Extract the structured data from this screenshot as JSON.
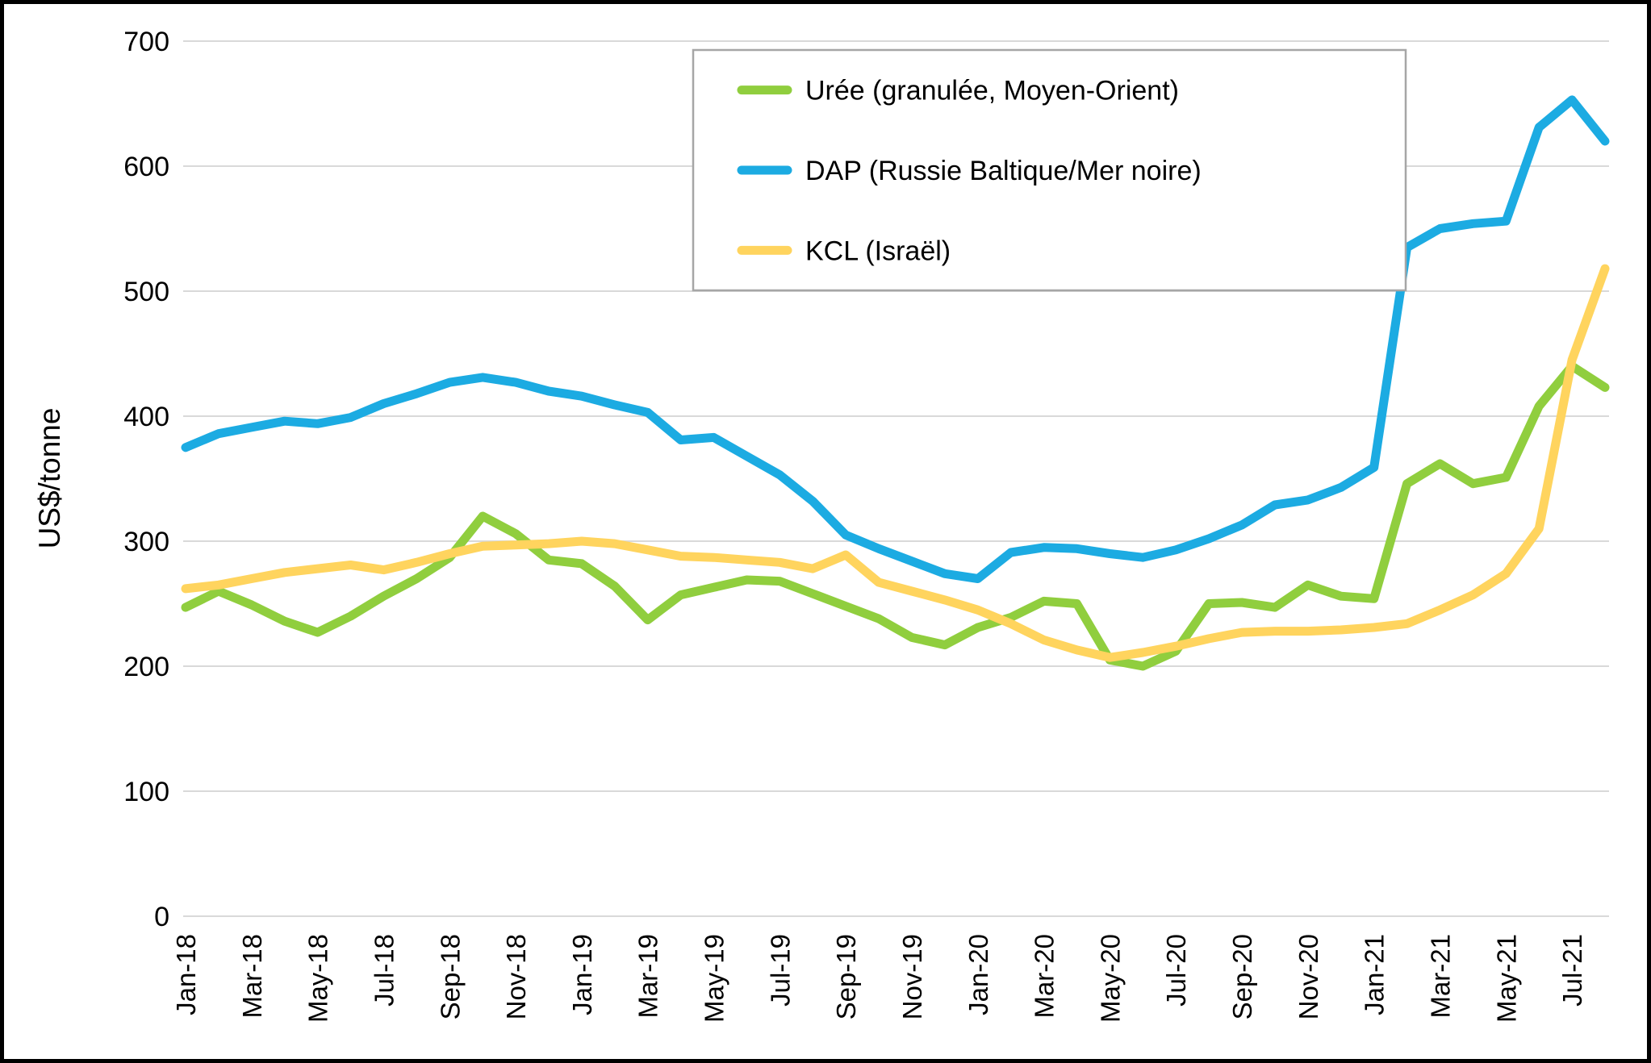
{
  "chart_data": {
    "type": "line",
    "title": "",
    "ylabel": "US$/tonne",
    "xlabel": "",
    "ylim": [
      0,
      700
    ],
    "ytick_step": 100,
    "ytick_labels": [
      "0",
      "100",
      "200",
      "300",
      "400",
      "500",
      "600",
      "700"
    ],
    "grid": "horizontal-only",
    "legend_position": "top-center-inside-box",
    "x_ticks_shown_every": 2,
    "categories": [
      "Jan-18",
      "Feb-18",
      "Mar-18",
      "Apr-18",
      "May-18",
      "Jun-18",
      "Jul-18",
      "Aug-18",
      "Sep-18",
      "Oct-18",
      "Nov-18",
      "Dec-18",
      "Jan-19",
      "Feb-19",
      "Mar-19",
      "Apr-19",
      "May-19",
      "Jun-19",
      "Jul-19",
      "Aug-19",
      "Sep-19",
      "Oct-19",
      "Nov-19",
      "Dec-19",
      "Jan-20",
      "Feb-20",
      "Mar-20",
      "Apr-20",
      "May-20",
      "Jun-20",
      "Jul-20",
      "Aug-20",
      "Sep-20",
      "Oct-20",
      "Nov-20",
      "Dec-20",
      "Jan-21",
      "Feb-21",
      "Mar-21",
      "Apr-21",
      "May-21",
      "Jun-21",
      "Jul-21",
      "Aug-21"
    ],
    "series": [
      {
        "name": "Urée (granulée, Moyen-Orient)",
        "color": "#90CE3E",
        "values": [
          247,
          260,
          249,
          236,
          227,
          240,
          256,
          270,
          287,
          320,
          306,
          285,
          282,
          264,
          237,
          257,
          263,
          269,
          268,
          258,
          248,
          238,
          223,
          217,
          231,
          239,
          252,
          250,
          205,
          200,
          212,
          250,
          251,
          247,
          265,
          256,
          254,
          346,
          362,
          346,
          351,
          408,
          440,
          423
        ]
      },
      {
        "name": "DAP (Russie Baltique/Mer noire)",
        "color": "#1CABE2",
        "values": [
          375,
          386,
          391,
          396,
          394,
          399,
          410,
          418,
          427,
          431,
          427,
          420,
          416,
          409,
          403,
          381,
          383,
          368,
          353,
          332,
          305,
          294,
          284,
          274,
          270,
          291,
          295,
          294,
          290,
          287,
          293,
          302,
          313,
          329,
          333,
          343,
          359,
          535,
          550,
          554,
          556,
          631,
          653,
          620
        ]
      },
      {
        "name": "KCL (Israël)",
        "color": "#FFD45E",
        "values": [
          262,
          265,
          270,
          275,
          278,
          281,
          277,
          283,
          290,
          296,
          297,
          298,
          300,
          298,
          293,
          288,
          287,
          285,
          283,
          278,
          289,
          267,
          260,
          253,
          245,
          234,
          221,
          213,
          207,
          211,
          216,
          222,
          227,
          228,
          228,
          229,
          231,
          234,
          245,
          257,
          274,
          310,
          445,
          518
        ]
      }
    ],
    "colors": {
      "background": "#FFFFFF",
      "gridline": "#D9D9D9",
      "axis_text": "#000000",
      "legend_border": "#A6A6A6",
      "chart_border": "#000000"
    }
  }
}
